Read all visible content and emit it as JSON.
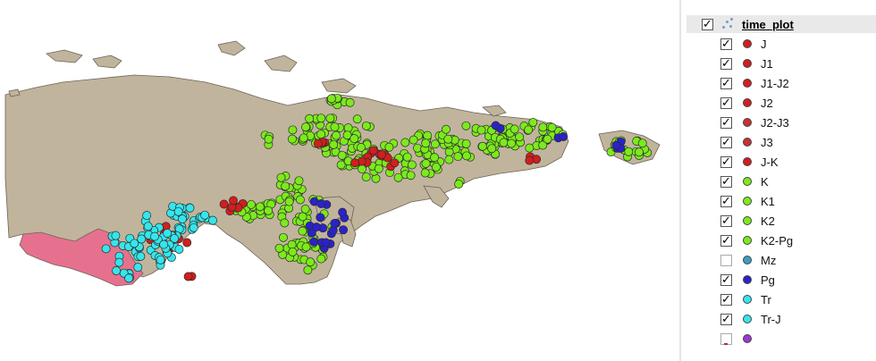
{
  "layer": {
    "name": "time_plot",
    "checked": true,
    "icon": "point-layer-icon"
  },
  "legend": [
    {
      "label": "J",
      "checked": true,
      "color": "#d21e1e"
    },
    {
      "label": "J1",
      "checked": true,
      "color": "#d21e1e"
    },
    {
      "label": "J1-J2",
      "checked": true,
      "color": "#d21e1e"
    },
    {
      "label": "J2",
      "checked": true,
      "color": "#d21e1e"
    },
    {
      "label": "J2-J3",
      "checked": true,
      "color": "#c83232"
    },
    {
      "label": "J3",
      "checked": true,
      "color": "#c83232"
    },
    {
      "label": "J-K",
      "checked": true,
      "color": "#d21e1e"
    },
    {
      "label": "K",
      "checked": true,
      "color": "#7cea1c"
    },
    {
      "label": "K1",
      "checked": true,
      "color": "#7cea1c"
    },
    {
      "label": "K2",
      "checked": true,
      "color": "#7cea1c"
    },
    {
      "label": "K2-Pg",
      "checked": true,
      "color": "#7cea1c"
    },
    {
      "label": "Mz",
      "checked": false,
      "color": "#3a9fc2"
    },
    {
      "label": "Pg",
      "checked": true,
      "color": "#2b22c8"
    },
    {
      "label": "Tr",
      "checked": true,
      "color": "#34e6ec"
    },
    {
      "label": "Tr-J",
      "checked": true,
      "color": "#34e6ec"
    },
    {
      "label": "",
      "checked": false,
      "color": "#9a3ad0"
    }
  ],
  "map": {
    "land_color": "#c1b49c",
    "highlight_region_color": "#e6718f",
    "point_colors": {
      "J": "#d21e1e",
      "K": "#7cea1c",
      "Pg": "#2b22c8",
      "Tr": "#34e6ec"
    }
  }
}
